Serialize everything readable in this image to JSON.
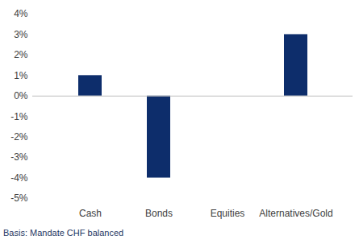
{
  "chart_data": {
    "type": "bar",
    "caption": "Basis: Mandate CHF balanced",
    "categories": [
      "Cash",
      "Bonds",
      "Equities",
      "Alternatives/Gold"
    ],
    "values": [
      1,
      -4,
      0,
      3
    ],
    "color": "#0d2d6b",
    "ylim": [
      -5,
      4
    ],
    "yticks": [
      {
        "value": -5,
        "label": "-5%"
      },
      {
        "value": -4,
        "label": "-4%"
      },
      {
        "value": -3,
        "label": "-3%"
      },
      {
        "value": -2,
        "label": "-2%"
      },
      {
        "value": -1,
        "label": "-1%"
      },
      {
        "value": 0,
        "label": "0%"
      },
      {
        "value": 1,
        "label": "1%"
      },
      {
        "value": 2,
        "label": "2%"
      },
      {
        "value": 3,
        "label": "3%"
      },
      {
        "value": 4,
        "label": "4%"
      }
    ],
    "grid": false
  }
}
